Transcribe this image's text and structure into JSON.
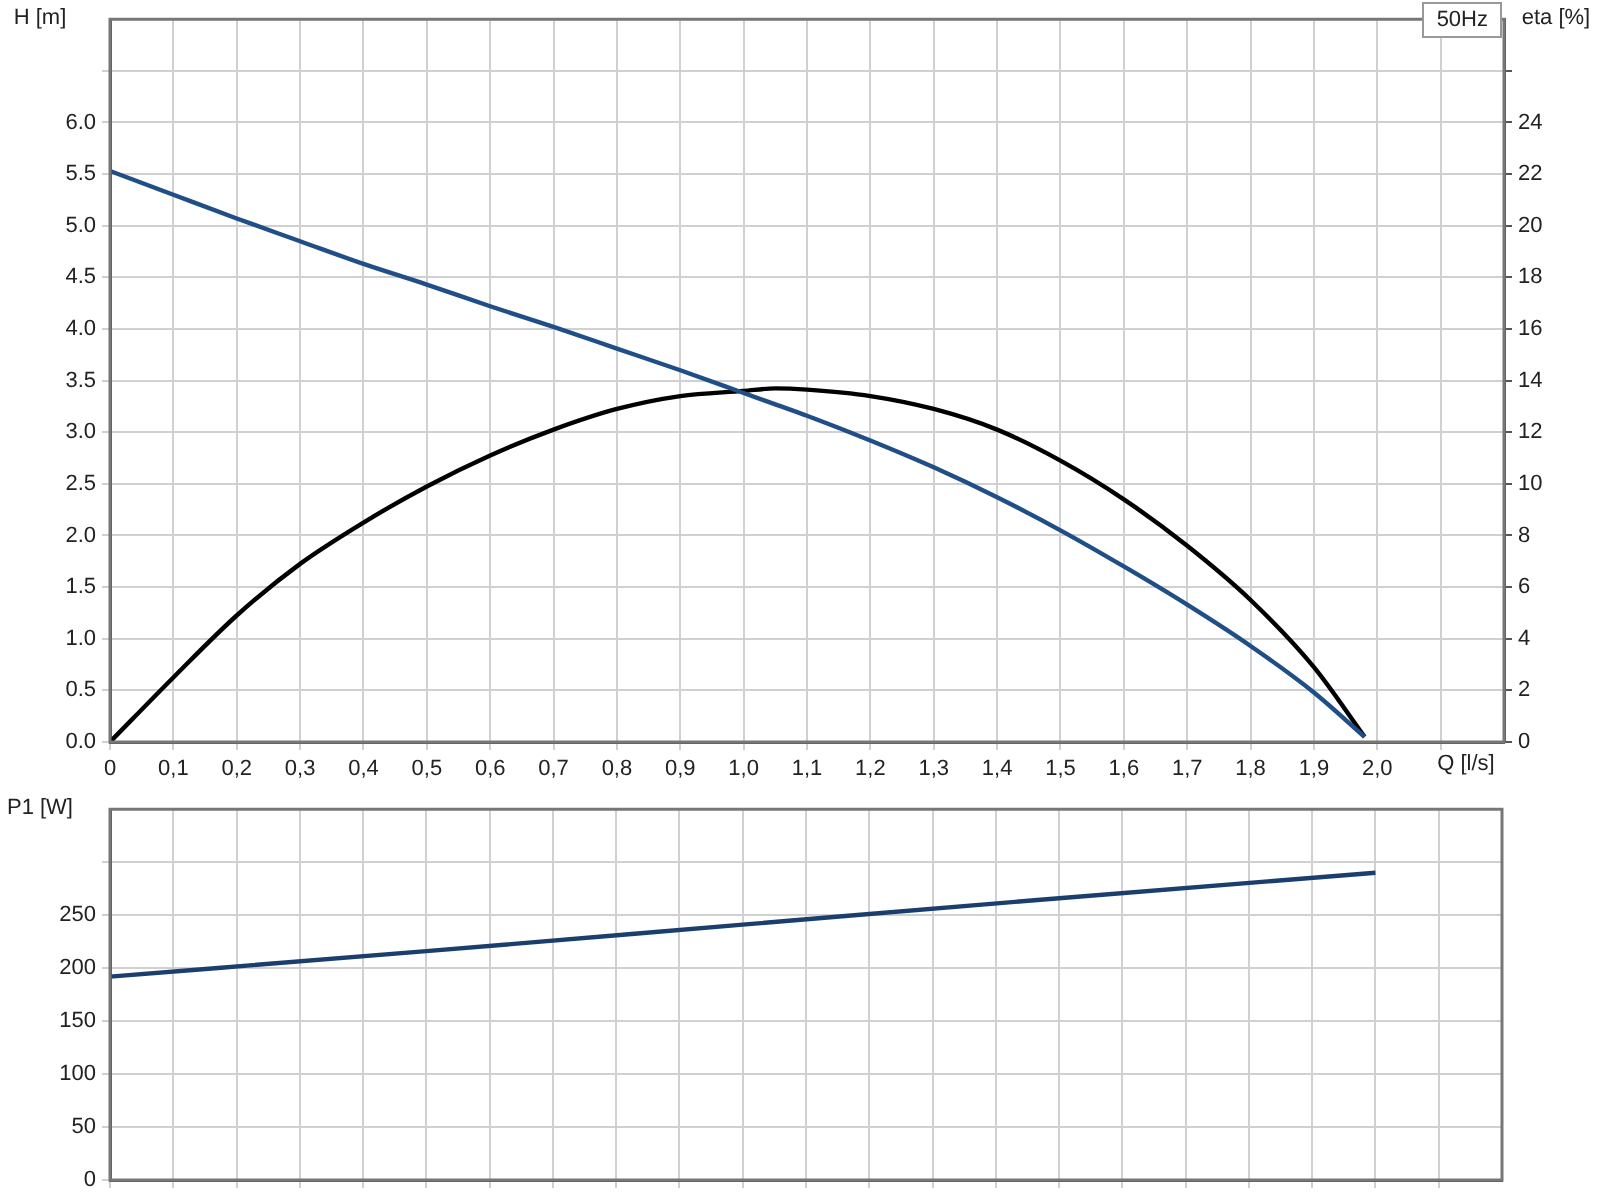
{
  "chart_data": [
    {
      "type": "line",
      "title": "50Hz",
      "xlabel": "Q [l/s]",
      "ylabel": "H [m]",
      "y2label": "eta [%]",
      "grid": true,
      "marker": "none",
      "line_style": "solid",
      "x": [
        0,
        0.1,
        0.2,
        0.3,
        0.4,
        0.5,
        0.6,
        0.7,
        0.8,
        0.9,
        1.0,
        1.05,
        1.1,
        1.2,
        1.3,
        1.4,
        1.5,
        1.6,
        1.7,
        1.8,
        1.9,
        1.98
      ],
      "series": [
        {
          "color": "#1f4f86",
          "values": [
            5.53,
            5.3,
            5.07,
            4.85,
            4.63,
            4.43,
            4.22,
            4.02,
            3.81,
            3.6,
            3.38,
            3.27,
            3.16,
            2.92,
            2.66,
            2.37,
            2.05,
            1.7,
            1.33,
            0.93,
            0.48,
            0.05
          ]
        },
        {
          "color": "#000000",
          "axis": "y2",
          "values": [
            0,
            2.5,
            4.9,
            6.9,
            8.5,
            9.9,
            11.1,
            12.1,
            12.9,
            13.4,
            13.6,
            13.7,
            13.65,
            13.4,
            12.9,
            12.1,
            10.9,
            9.4,
            7.6,
            5.5,
            2.9,
            0.2
          ]
        }
      ],
      "xlim": [
        0,
        2.2
      ],
      "xticks": [
        0,
        {
          "value": 0.1,
          "label": "0,1"
        },
        {
          "value": 0.2,
          "label": "0,2"
        },
        {
          "value": 0.3,
          "label": "0,3"
        },
        {
          "value": 0.4,
          "label": "0,4"
        },
        {
          "value": 0.5,
          "label": "0,5"
        },
        {
          "value": 0.6,
          "label": "0,6"
        },
        {
          "value": 0.7,
          "label": "0,7"
        },
        {
          "value": 0.8,
          "label": "0,8"
        },
        {
          "value": 0.9,
          "label": "0,9"
        },
        {
          "value": 1.0,
          "label": "1,0"
        },
        {
          "value": 1.1,
          "label": "1,1"
        },
        {
          "value": 1.2,
          "label": "1,2"
        },
        {
          "value": 1.3,
          "label": "1,3"
        },
        {
          "value": 1.4,
          "label": "1,4"
        },
        {
          "value": 1.5,
          "label": "1,5"
        },
        {
          "value": 1.6,
          "label": "1,6"
        },
        {
          "value": 1.7,
          "label": "1,7"
        },
        {
          "value": 1.8,
          "label": "1,8"
        },
        {
          "value": 1.9,
          "label": "1,9"
        },
        {
          "value": 2.0,
          "label": "2,0"
        },
        {
          "value": 2.1,
          "label": null
        }
      ],
      "ylim": [
        0,
        7
      ],
      "yticks": [
        {
          "value": 0,
          "label": "0.0"
        },
        0.5,
        {
          "value": 1,
          "label": "1.0"
        },
        1.5,
        {
          "value": 2,
          "label": "2.0"
        },
        2.5,
        {
          "value": 3,
          "label": "3.0"
        },
        3.5,
        {
          "value": 4,
          "label": "4.0"
        },
        4.5,
        {
          "value": 5,
          "label": "5.0"
        },
        5.5,
        {
          "value": 6,
          "label": "6.0"
        },
        {
          "value": 6.5,
          "label": null
        }
      ],
      "y2lim": [
        0,
        28
      ],
      "y2ticks": [
        0,
        2,
        4,
        6,
        8,
        10,
        12,
        14,
        16,
        18,
        20,
        22,
        24,
        {
          "value": 26,
          "label": null
        }
      ]
    },
    {
      "type": "line",
      "ylabel": "P1 [W]",
      "grid": true,
      "marker": "none",
      "line_style": "solid",
      "tick_labels": "y",
      "x": [
        0,
        0.5,
        1.0,
        1.5,
        2.0
      ],
      "series": [
        {
          "color": "#1a3f6e",
          "values": [
            192,
            216,
            241,
            266,
            290
          ]
        }
      ],
      "xlim": [
        0,
        2.2
      ],
      "xticks": [
        0,
        0.1,
        0.2,
        0.3,
        0.4,
        0.5,
        0.6,
        0.7,
        0.8,
        0.9,
        1.0,
        1.1,
        1.2,
        1.3,
        1.4,
        1.5,
        1.6,
        1.7,
        1.8,
        1.9,
        2.0,
        2.1
      ],
      "ylim": [
        0,
        350
      ],
      "yticks": [
        0,
        50,
        100,
        150,
        200,
        250,
        {
          "value": 300,
          "label": null
        }
      ]
    }
  ]
}
